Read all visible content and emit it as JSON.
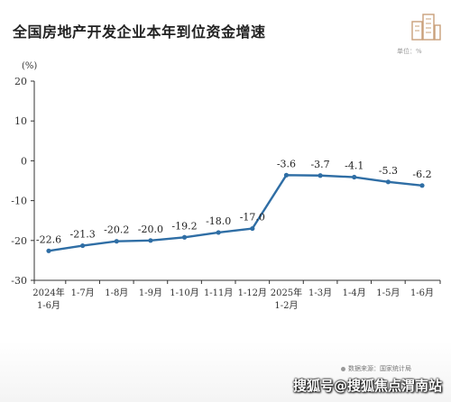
{
  "title": "全国房地产开发企业本年到位资金增速",
  "unit_label": "单位：%",
  "source": "数据来源：国家统计局",
  "watermark": "搜狐号@搜狐焦点渭南站",
  "chart_data": {
    "type": "line",
    "title": "全国房地产开发企业本年到位资金增速",
    "ylabel": "(%)",
    "xlabel": "",
    "ylim": [
      -30,
      20
    ],
    "yticks": [
      20,
      10,
      0,
      -10,
      -20,
      -30
    ],
    "grid": false,
    "categories": [
      [
        "2024年",
        "1-6月"
      ],
      [
        "1-7月"
      ],
      [
        "1-8月"
      ],
      [
        "1-9月"
      ],
      [
        "1-10月"
      ],
      [
        "1-11月"
      ],
      [
        "1-12月"
      ],
      [
        "2025年",
        "1-2月"
      ],
      [
        "1-3月"
      ],
      [
        "1-4月"
      ],
      [
        "1-5月"
      ],
      [
        "1-6月"
      ]
    ],
    "values": [
      -22.6,
      -21.3,
      -20.2,
      -20.0,
      -19.2,
      -18.0,
      -17.0,
      -3.6,
      -3.7,
      -4.1,
      -5.3,
      -6.2
    ],
    "data_labels": [
      "-22.6",
      "-21.3",
      "-20.2",
      "-20.0",
      "-19.2",
      "-18.0",
      "-17.0",
      "-3.6",
      "-3.7",
      "-4.1",
      "-5.3",
      "-6.2"
    ],
    "line_color": "#2f6ea5"
  }
}
